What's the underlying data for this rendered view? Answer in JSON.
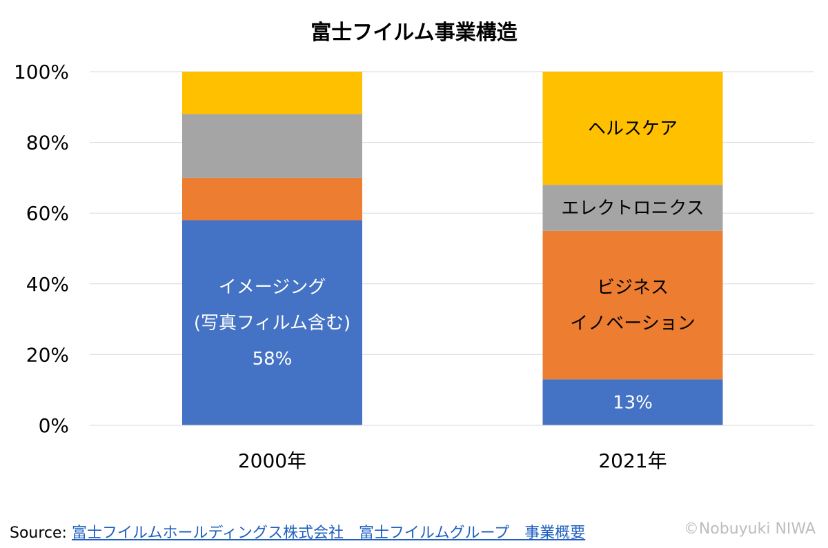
{
  "chart_data": {
    "type": "bar",
    "stacked": true,
    "title": "富士フイルム事業構造",
    "categories": [
      "2000年",
      "2021年"
    ],
    "ylim": [
      0,
      100
    ],
    "yticks": [
      "0%",
      "20%",
      "40%",
      "60%",
      "80%",
      "100%"
    ],
    "grid": true,
    "series": [
      {
        "name": "イメージング",
        "color": "#4472c4",
        "values": [
          58,
          13
        ],
        "labels": [
          [
            "イメージング",
            "(写真フィルム含む)",
            "58%"
          ],
          [
            "13%"
          ]
        ]
      },
      {
        "name": "ビジネスイノベーション",
        "color": "#ed7d31",
        "values": [
          12,
          42
        ],
        "labels": [
          [],
          [
            "ビジネス",
            "イノベーション"
          ]
        ]
      },
      {
        "name": "エレクトロニクス",
        "color": "#a5a5a5",
        "values": [
          18,
          13
        ],
        "labels": [
          [],
          [
            "エレクトロニクス"
          ]
        ]
      },
      {
        "name": "ヘルスケア",
        "color": "#ffc000",
        "values": [
          12,
          32
        ],
        "labels": [
          [],
          [
            "ヘルスケア"
          ]
        ]
      }
    ]
  },
  "footer": {
    "source_prefix": "Source:",
    "source_link": "富士フイルムホールディングス株式会社　富士フイルムグループ　事業概要",
    "credit": "©Nobuyuki NIWA"
  }
}
